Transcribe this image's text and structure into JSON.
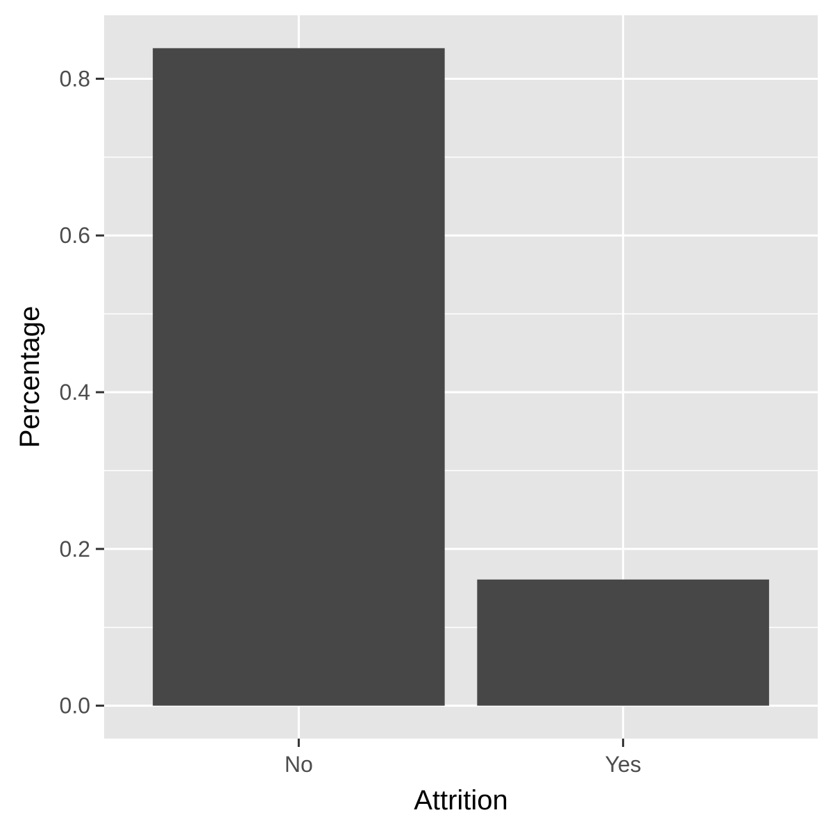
{
  "chart_data": {
    "type": "bar",
    "categories": [
      "No",
      "Yes"
    ],
    "values": [
      0.839,
      0.161
    ],
    "xlabel": "Attrition",
    "ylabel": "Percentage",
    "ylim": [
      -0.042,
      0.881
    ],
    "yticks": [
      0.0,
      0.2,
      0.4,
      0.6,
      0.8
    ],
    "ytick_labels": [
      "0.0",
      "0.2",
      "0.4",
      "0.6",
      "0.8"
    ],
    "grid": true,
    "legend": "none",
    "colors": {
      "bar": "#474747",
      "panel_background": "#e5e5e5",
      "grid_line": "#ffffff",
      "tick_mark": "#333333"
    }
  }
}
